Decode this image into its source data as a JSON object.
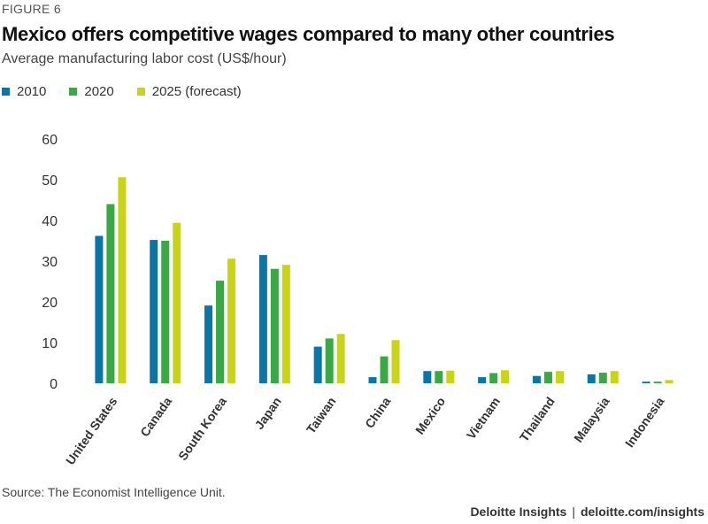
{
  "figure_label": "FIGURE 6",
  "title": "Mexico offers competitive wages compared to many other countries",
  "subtitle": "Average manufacturing labor cost (US$/hour)",
  "source": "Source: The Economist Intelligence Unit.",
  "credit": {
    "brand": "Deloitte Insights",
    "separator": "|",
    "site": "deloitte.com/insights"
  },
  "colors": {
    "s2010": "#0a76a8",
    "s2020": "#3aa845",
    "s2025": "#c8d414",
    "tick": "#333333"
  },
  "chart_data": {
    "type": "bar",
    "title": "Mexico offers competitive wages compared to many other countries",
    "ylabel": "",
    "xlabel": "",
    "ylim": [
      0,
      60
    ],
    "yticks": [
      0,
      10,
      20,
      30,
      40,
      50,
      60
    ],
    "grid": false,
    "legend_position": "top-left",
    "categories": [
      "United States",
      "Canada",
      "South Korea",
      "Japan",
      "Taiwan",
      "China",
      "Mexico",
      "Vietnam",
      "Thailand",
      "Malaysia",
      "Indonesia"
    ],
    "series": [
      {
        "name": "2010",
        "color": "#0a76a8",
        "values": [
          36.2,
          35.2,
          19.1,
          31.5,
          9.0,
          1.5,
          3.0,
          1.5,
          1.8,
          2.2,
          0.4
        ]
      },
      {
        "name": "2020",
        "color": "#3aa845",
        "values": [
          44.0,
          35.0,
          25.2,
          28.1,
          11.0,
          6.6,
          3.0,
          2.5,
          2.8,
          2.6,
          0.4
        ]
      },
      {
        "name": "2025 (forecast)",
        "color": "#c8d414",
        "values": [
          50.6,
          39.4,
          30.6,
          29.1,
          12.1,
          10.6,
          3.1,
          3.2,
          3.0,
          3.0,
          0.8
        ]
      }
    ]
  }
}
